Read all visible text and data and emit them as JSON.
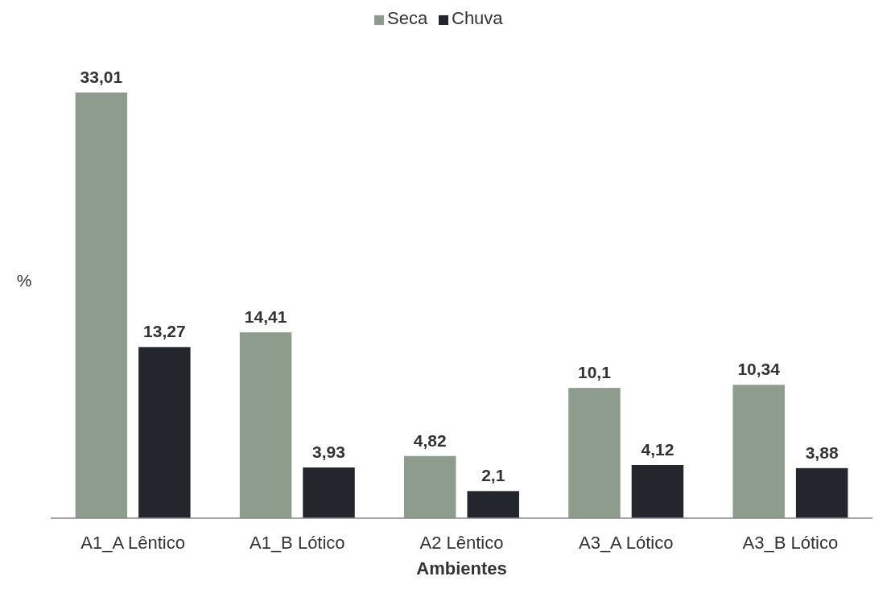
{
  "chart_data": {
    "type": "bar",
    "xlabel": "Ambientes",
    "ylabel": "%",
    "categories": [
      "A1_A Lêntico",
      "A1_B Lótico",
      "A2 Lêntico",
      "A3_A Lótico",
      "A3_B Lótico"
    ],
    "series": [
      {
        "name": "Seca",
        "color": "#8e9c8e",
        "values": [
          33.01,
          14.41,
          4.82,
          10.1,
          10.34
        ],
        "value_labels": [
          "33,01",
          "14,41",
          "4,82",
          "10,1",
          "10,34"
        ]
      },
      {
        "name": "Chuva",
        "color": "#23262d",
        "values": [
          13.27,
          3.93,
          2.1,
          4.12,
          3.88
        ],
        "value_labels": [
          "13,27",
          "3,93",
          "2,1",
          "4,12",
          "3,88"
        ]
      }
    ],
    "legend": "top"
  }
}
